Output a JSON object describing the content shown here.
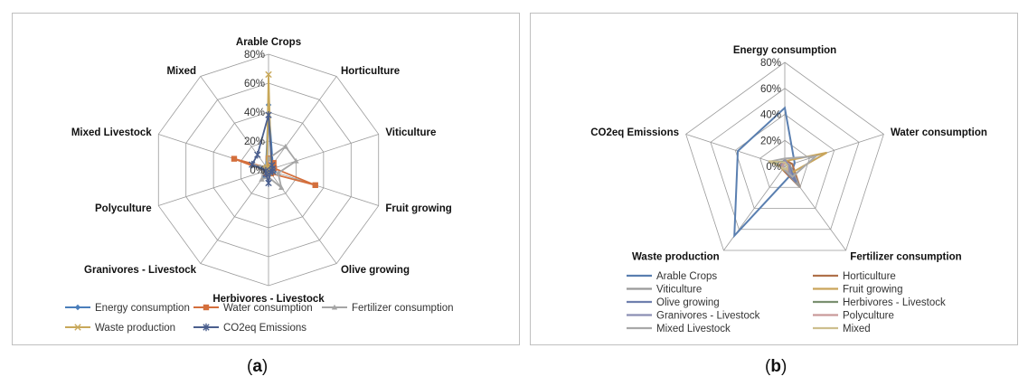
{
  "chart_data": [
    {
      "type": "radar",
      "caption": {
        "open": "(",
        "letter": "a",
        "close": ")"
      },
      "axes": [
        "Arable Crops",
        "Horticulture",
        "Viticulture",
        "Fruit growing",
        "Olive growing",
        "Herbivores - Livestock",
        "Granivores - Livestock",
        "Polyculture",
        "Mixed Livestock",
        "Mixed"
      ],
      "ticks": [
        "0%",
        "20%",
        "40%",
        "60%",
        "80%"
      ],
      "range": [
        0,
        80
      ],
      "legend_position": "bottom",
      "series": [
        {
          "name": "Energy consumption",
          "color": "#4a7ebb",
          "marker": "diamond",
          "values": [
            45,
            5,
            3,
            4,
            3,
            4,
            5,
            3,
            6,
            3
          ]
        },
        {
          "name": "Water consumption",
          "color": "#d46f3c",
          "marker": "square",
          "values": [
            8,
            6,
            4,
            34,
            3,
            2,
            3,
            2,
            25,
            2
          ]
        },
        {
          "name": "Fertilizer consumption",
          "color": "#a5a5a5",
          "marker": "triangle",
          "values": [
            8,
            20,
            20,
            7,
            15,
            5,
            8,
            4,
            10,
            3
          ]
        },
        {
          "name": "Waste production",
          "color": "#c8a85a",
          "marker": "cross",
          "values": [
            66,
            3,
            2,
            3,
            2,
            2,
            2,
            2,
            2,
            2
          ]
        },
        {
          "name": "CO2eq Emissions",
          "color": "#4b5f8e",
          "marker": "star",
          "values": [
            38,
            4,
            3,
            3,
            2,
            9,
            3,
            2,
            12,
            13
          ]
        }
      ]
    },
    {
      "type": "radar",
      "caption": {
        "open": "(",
        "letter": "b",
        "close": ")"
      },
      "axes": [
        "Energy consumption",
        "Water consumption",
        "Fertilizer consumption",
        "Waste production",
        "CO2eq Emissions"
      ],
      "ticks": [
        "0%",
        "20%",
        "40%",
        "60%",
        "80%"
      ],
      "range": [
        0,
        80
      ],
      "legend_position": "bottom",
      "series": [
        {
          "name": "Arable Crops",
          "color": "#5a7fb0",
          "values": [
            45,
            8,
            8,
            66,
            38
          ]
        },
        {
          "name": "Horticulture",
          "color": "#b0714a",
          "values": [
            5,
            6,
            20,
            3,
            4
          ]
        },
        {
          "name": "Viticulture",
          "color": "#9a9a9a",
          "values": [
            3,
            4,
            20,
            2,
            3
          ]
        },
        {
          "name": "Fruit growing",
          "color": "#c9a55a",
          "values": [
            4,
            34,
            7,
            3,
            3
          ]
        },
        {
          "name": "Olive growing",
          "color": "#6f7fae",
          "values": [
            3,
            3,
            15,
            2,
            2
          ]
        },
        {
          "name": "Herbivores - Livestock",
          "color": "#7a9070",
          "values": [
            4,
            2,
            5,
            2,
            9
          ]
        },
        {
          "name": "Granivores - Livestock",
          "color": "#8c8fb3",
          "values": [
            5,
            3,
            8,
            2,
            3
          ]
        },
        {
          "name": "Polyculture",
          "color": "#c99a9a",
          "values": [
            3,
            2,
            4,
            2,
            2
          ]
        },
        {
          "name": "Mixed Livestock",
          "color": "#a8a8a8",
          "values": [
            6,
            25,
            10,
            2,
            12
          ]
        },
        {
          "name": "Mixed",
          "color": "#cdbf8e",
          "values": [
            3,
            2,
            3,
            2,
            13
          ]
        }
      ]
    }
  ]
}
